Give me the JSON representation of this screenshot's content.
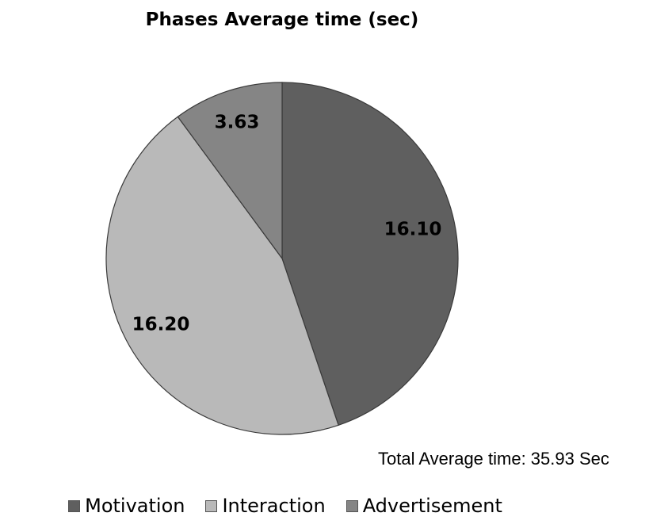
{
  "chart_data": {
    "type": "pie",
    "title": "Phases Average time (sec)",
    "series": [
      {
        "values": [
          16.1,
          16.2,
          3.63
        ]
      }
    ],
    "categories": [
      "Motivation",
      "Interaction",
      "Advertisement"
    ],
    "labels": [
      "16.10",
      "16.20",
      "3.63"
    ],
    "colors": [
      "#5f5f5f",
      "#b9b9b9",
      "#858585"
    ],
    "start_angle": "12 o'clock, clockwise",
    "legend": "bottom",
    "annotation": "Total Average time: 35.93 Sec"
  }
}
